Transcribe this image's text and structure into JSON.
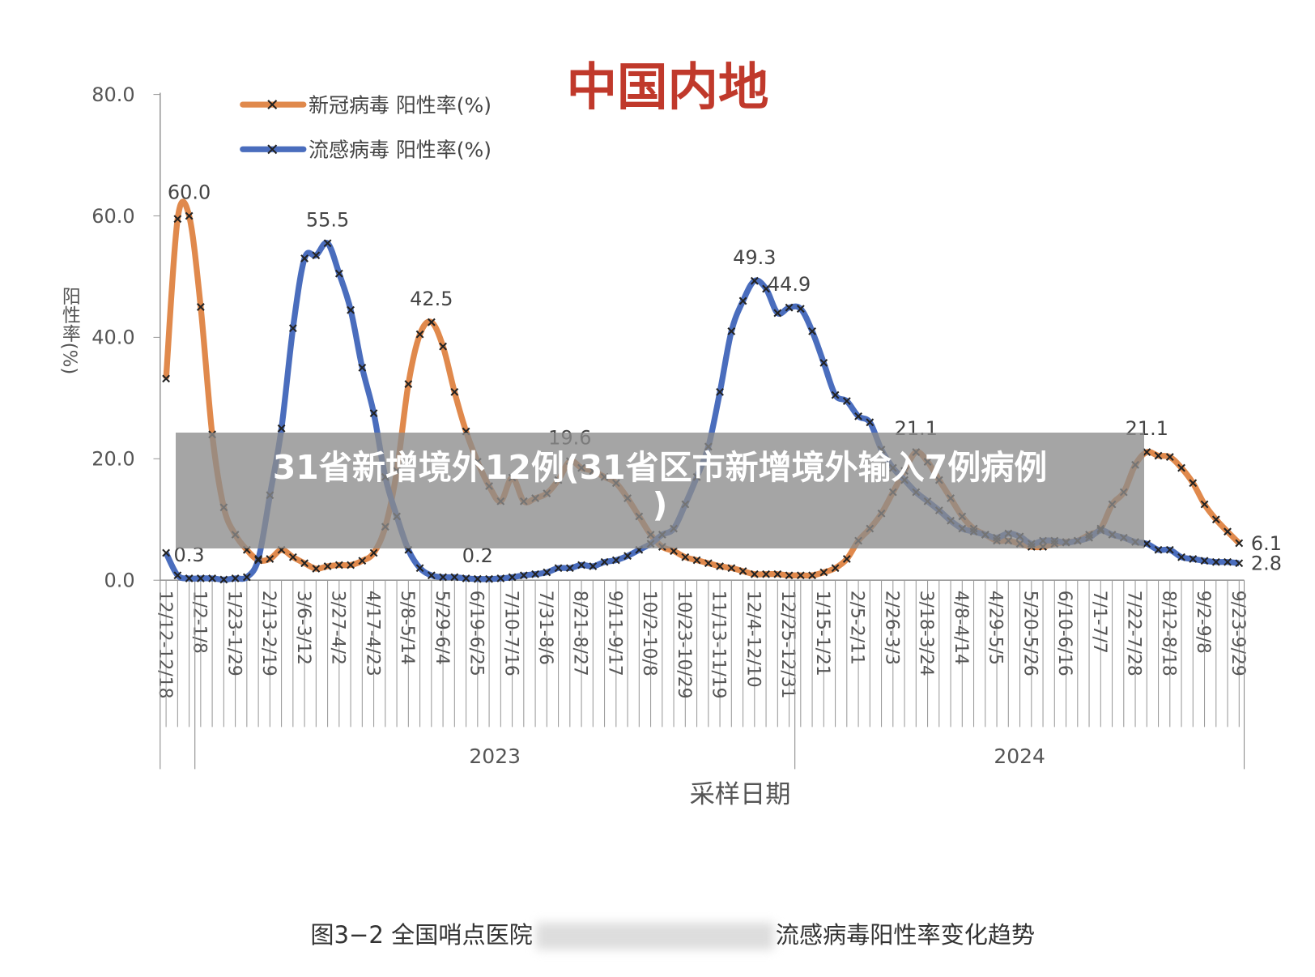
{
  "chart_data": {
    "type": "line",
    "title": "中国内地",
    "banner": [
      "31省新增境外12例(31省区市新增境外输入7例病例",
      ")"
    ],
    "ylabel": "阳性率(%)",
    "xlabel": "采样日期",
    "years": [
      "2023",
      "2024"
    ],
    "caption": [
      "图3−2 全国哨点医院",
      "流感病毒阳性率变化趋势"
    ],
    "categories": [
      "12/12-12/18",
      null,
      null,
      "1/2-1/8",
      null,
      null,
      "1/23-1/29",
      null,
      null,
      "2/13-2/19",
      null,
      null,
      "3/6-3/12",
      null,
      null,
      "3/27-4/2",
      null,
      null,
      "4/17-4/23",
      null,
      null,
      "5/8-5/14",
      null,
      null,
      "5/29-6/4",
      null,
      null,
      "6/19-6/25",
      null,
      null,
      "7/10-7/16",
      null,
      null,
      "7/31-8/6",
      null,
      null,
      "8/21-8/27",
      null,
      null,
      "9/11-9/17",
      null,
      null,
      "10/2-10/8",
      null,
      null,
      "10/23-10/29",
      null,
      null,
      "11/13-11/19",
      null,
      null,
      "12/4-12/10",
      null,
      null,
      "12/25-12/31",
      null,
      null,
      "1/15-1/21",
      null,
      null,
      "2/5-2/11",
      null,
      null,
      "2/26-3/3",
      null,
      null,
      "3/18-3/24",
      null,
      null,
      "4/8-4/14",
      null,
      null,
      "4/29-5/5",
      null,
      null,
      "5/20-5/26",
      null,
      null,
      "6/10-6/16",
      null,
      null,
      "7/1-7/7",
      null,
      null,
      "7/22-7/28",
      null,
      null,
      "8/12-8/18",
      null,
      null,
      "9/2-9/8",
      null,
      null,
      "9/23-9/29"
    ],
    "series": [
      {
        "name": "新冠病毒 阳性率(%)",
        "color": "#e0894c",
        "values": [
          33.2,
          59.5,
          60.0,
          45,
          24,
          12,
          7.5,
          5,
          3.3,
          3.5,
          5.0,
          3.8,
          2.8,
          1.9,
          2.3,
          2.5,
          2.5,
          3.2,
          4.5,
          8.8,
          18,
          32.3,
          40.5,
          42.5,
          38.5,
          31,
          24.5,
          19.5,
          15.5,
          13,
          16.9,
          13,
          13.5,
          14.3,
          16.5,
          19.6,
          18.5,
          18,
          17,
          16,
          13.5,
          10.5,
          7.5,
          5.5,
          4.8,
          3.8,
          3.3,
          2.8,
          2.3,
          2.0,
          1.5,
          1.0,
          1.0,
          1.0,
          0.8,
          0.8,
          0.8,
          1.3,
          2.0,
          3.5,
          6.5,
          8.5,
          11,
          14.5,
          18,
          21.1,
          19.5,
          16.5,
          13.5,
          10.5,
          8.5,
          7.5,
          6.5,
          6.5,
          6,
          5.5,
          5.5,
          6,
          6.3,
          6.5,
          7.5,
          8.5,
          12.5,
          14.5,
          19,
          21.1,
          20.5,
          20.3,
          18.5,
          16,
          12.5,
          10,
          8.0,
          6.1
        ],
        "value_labels": [
          null,
          null,
          "60.0",
          null,
          null,
          null,
          null,
          null,
          null,
          null,
          null,
          null,
          null,
          null,
          null,
          null,
          null,
          null,
          null,
          null,
          null,
          null,
          null,
          "42.5",
          null,
          null,
          null,
          null,
          null,
          null,
          null,
          null,
          null,
          null,
          null,
          "19.6",
          null,
          null,
          null,
          null,
          null,
          null,
          null,
          null,
          null,
          null,
          null,
          null,
          null,
          null,
          null,
          null,
          null,
          null,
          null,
          null,
          null,
          null,
          null,
          null,
          null,
          null,
          null,
          null,
          null,
          "21.1",
          null,
          null,
          null,
          null,
          null,
          null,
          null,
          null,
          null,
          null,
          null,
          null,
          null,
          null,
          null,
          null,
          null,
          null,
          null,
          "21.1",
          null,
          null,
          null,
          null,
          null,
          null,
          null,
          "6.1"
        ]
      },
      {
        "name": "流感病毒 阳性率(%)",
        "color": "#4a6dbd",
        "values": [
          4.5,
          0.8,
          0.3,
          0.3,
          0.3,
          0.1,
          0.3,
          0.5,
          3.5,
          14,
          25,
          41.5,
          53,
          53.5,
          55.5,
          50.5,
          44.5,
          35,
          27.5,
          17,
          10.5,
          5,
          2,
          0.8,
          0.5,
          0.5,
          0.3,
          0.2,
          0.2,
          0.3,
          0.5,
          0.8,
          1.0,
          1.3,
          2.0,
          2.0,
          2.5,
          2.3,
          3.0,
          3.3,
          4.0,
          5.0,
          6.0,
          7.5,
          8.5,
          12.5,
          17,
          22,
          31,
          41,
          46,
          49.3,
          48,
          44,
          44.9,
          44.7,
          41,
          35.8,
          30.5,
          29.5,
          27,
          26,
          21.5,
          18.5,
          16.5,
          14.5,
          13,
          11.5,
          9.8,
          8.5,
          8,
          7.5,
          7.0,
          7.7,
          7.2,
          6.0,
          6.5,
          6.5,
          6.2,
          6.5,
          7.0,
          8.2,
          7.5,
          7.0,
          6.3,
          6.0,
          5.0,
          5.0,
          3.8,
          3.5,
          3.2,
          3.0,
          3.0,
          2.8
        ],
        "value_labels": [
          null,
          null,
          "0.3",
          null,
          null,
          null,
          null,
          null,
          null,
          null,
          null,
          null,
          null,
          null,
          "55.5",
          null,
          null,
          null,
          null,
          null,
          null,
          null,
          null,
          null,
          null,
          null,
          null,
          "0.2",
          null,
          null,
          null,
          null,
          null,
          null,
          null,
          null,
          null,
          null,
          null,
          null,
          null,
          null,
          null,
          null,
          null,
          null,
          null,
          null,
          null,
          null,
          null,
          "49.3",
          null,
          null,
          "44.9",
          null,
          null,
          null,
          null,
          null,
          null,
          null,
          null,
          null,
          null,
          null,
          null,
          null,
          null,
          null,
          null,
          null,
          null,
          null,
          null,
          null,
          null,
          null,
          null,
          null,
          null,
          null,
          null,
          null,
          null,
          null,
          null,
          null,
          null,
          null,
          null,
          null,
          null,
          "2.8"
        ]
      }
    ],
    "ylim": [
      0,
      80
    ],
    "yticks": [
      {
        "value": 0,
        "label": "0.0"
      },
      {
        "value": 20,
        "label": "20.0"
      },
      {
        "value": 40,
        "label": "40.0"
      },
      {
        "value": 60,
        "label": "60.0"
      },
      {
        "value": 80,
        "label": "80.0"
      }
    ]
  }
}
